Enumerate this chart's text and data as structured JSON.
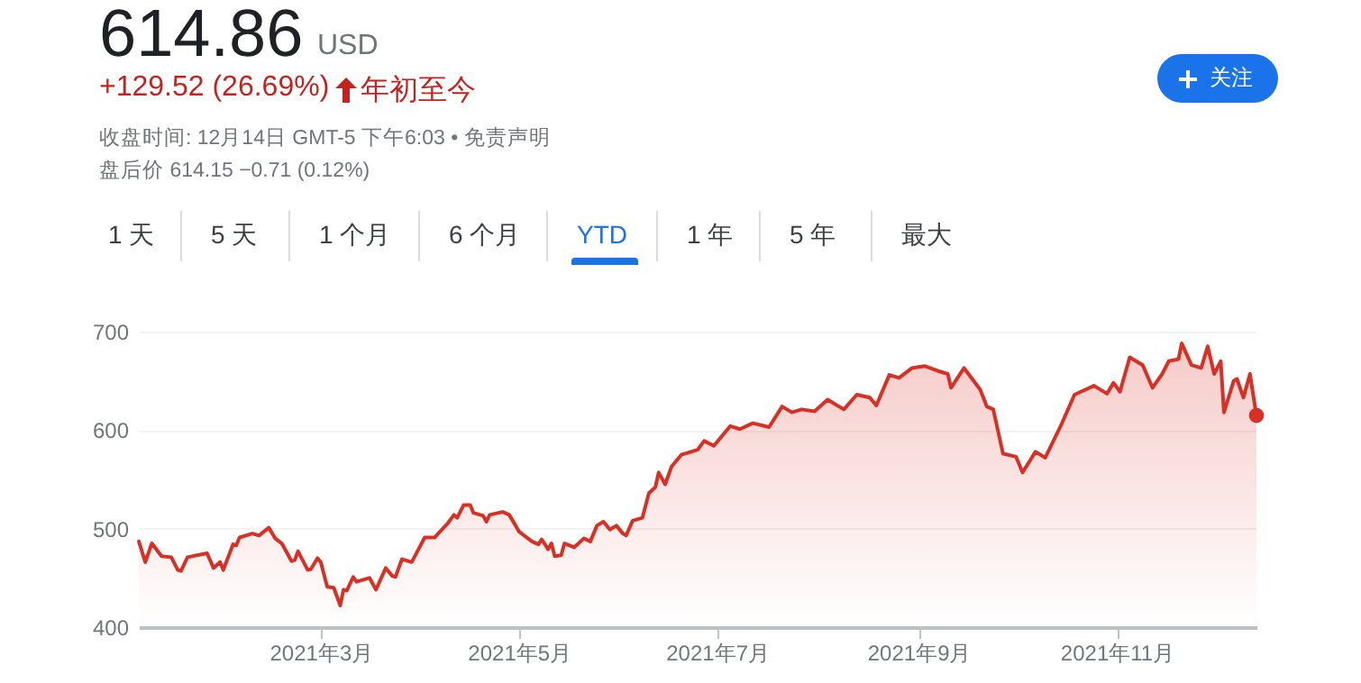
{
  "chart_data": {
    "type": "area",
    "title": "614.86",
    "annotations": [
      "USD",
      "+129.52 (26.69%)",
      "年初至今",
      "收盘时间: 12月14日 GMT-5 下午6:03 • 免责声明",
      "盘后价 614.15 −0.71 (0.12%)",
      "1 天",
      "5 天",
      "1 个月",
      "6 个月",
      "YTD",
      "1 年",
      "5 年",
      "最大",
      "关注"
    ],
    "xlim": [
      "2021-01-04",
      "2021-12-14"
    ],
    "xticks": [
      {
        "value": "2021-03-01",
        "label": "2021年3月"
      },
      {
        "value": "2021-05-01",
        "label": "2021年5月"
      },
      {
        "value": "2021-07-01",
        "label": "2021年7月"
      },
      {
        "value": "2021-09-01",
        "label": "2021年9月"
      },
      {
        "value": "2021-11-01",
        "label": "2021年11月"
      }
    ],
    "ylim": [
      400,
      700
    ],
    "yticks": [
      400,
      500,
      600,
      700
    ],
    "grid": "y",
    "series": [
      {
        "color": "#d93025",
        "x": [
          "2021-01-04",
          "2021-01-06",
          "2021-01-08",
          "2021-01-11",
          "2021-01-14",
          "2021-01-16",
          "2021-01-17",
          "2021-01-19",
          "2021-01-25",
          "2021-01-27",
          "2021-01-29",
          "2021-01-30",
          "2021-02-02",
          "2021-02-03",
          "2021-02-04",
          "2021-02-08",
          "2021-02-10",
          "2021-02-13",
          "2021-02-15",
          "2021-02-17",
          "2021-02-20",
          "2021-02-21",
          "2021-02-22",
          "2021-02-25",
          "2021-02-26",
          "2021-02-28",
          "2021-03-01",
          "2021-03-03",
          "2021-03-05",
          "2021-03-07",
          "2021-03-08",
          "2021-03-09",
          "2021-03-11",
          "2021-03-12",
          "2021-03-16",
          "2021-03-18",
          "2021-03-21",
          "2021-03-23",
          "2021-03-24",
          "2021-03-26",
          "2021-03-29",
          "2021-04-02",
          "2021-04-05",
          "2021-04-09",
          "2021-04-11",
          "2021-04-12",
          "2021-04-14",
          "2021-04-16",
          "2021-04-17",
          "2021-04-20",
          "2021-04-21",
          "2021-04-22",
          "2021-04-26",
          "2021-04-28",
          "2021-04-30",
          "2021-05-01",
          "2021-05-05",
          "2021-05-07",
          "2021-05-08",
          "2021-05-10",
          "2021-05-11",
          "2021-05-12",
          "2021-05-14",
          "2021-05-15",
          "2021-05-18",
          "2021-05-21",
          "2021-05-23",
          "2021-05-25",
          "2021-05-27",
          "2021-05-29",
          "2021-05-31",
          "2021-06-02",
          "2021-06-03",
          "2021-06-05",
          "2021-06-08",
          "2021-06-10",
          "2021-06-12",
          "2021-06-13",
          "2021-06-15",
          "2021-06-17",
          "2021-06-20",
          "2021-06-25",
          "2021-06-27",
          "2021-06-30",
          "2021-07-05",
          "2021-07-08",
          "2021-07-12",
          "2021-07-17",
          "2021-07-21",
          "2021-07-24",
          "2021-07-27",
          "2021-07-31",
          "2021-08-04",
          "2021-08-09",
          "2021-08-13",
          "2021-08-17",
          "2021-08-19",
          "2021-08-23",
          "2021-08-26",
          "2021-08-30",
          "2021-09-03",
          "2021-09-07",
          "2021-09-10",
          "2021-09-11",
          "2021-09-15",
          "2021-09-20",
          "2021-09-22",
          "2021-09-24",
          "2021-09-27",
          "2021-10-01",
          "2021-10-03",
          "2021-10-07",
          "2021-10-10",
          "2021-10-15",
          "2021-10-19",
          "2021-10-25",
          "2021-10-29",
          "2021-10-31",
          "2021-11-02",
          "2021-11-05",
          "2021-11-09",
          "2021-11-12",
          "2021-11-15",
          "2021-11-17",
          "2021-11-20",
          "2021-11-21",
          "2021-11-24",
          "2021-11-27",
          "2021-11-29",
          "2021-12-01",
          "2021-12-03",
          "2021-12-04",
          "2021-12-07",
          "2021-12-08",
          "2021-12-10",
          "2021-12-12",
          "2021-12-14"
        ],
        "values": [
          487,
          466,
          485,
          472,
          471,
          458,
          457,
          471,
          475,
          460,
          466,
          458,
          484,
          483,
          491,
          495,
          493,
          501,
          490,
          485,
          467,
          468,
          477,
          458,
          459,
          470,
          466,
          441,
          440,
          422,
          438,
          437,
          451,
          446,
          450,
          438,
          460,
          452,
          451,
          469,
          466,
          491,
          491,
          505,
          514,
          511,
          524,
          524,
          516,
          513,
          507,
          514,
          517,
          514,
          503,
          497,
          487,
          484,
          489,
          479,
          485,
          472,
          473,
          485,
          481,
          490,
          487,
          503,
          507,
          499,
          503,
          495,
          493,
          508,
          511,
          536,
          542,
          557,
          545,
          563,
          575,
          580,
          589,
          584,
          604,
          601,
          607,
          603,
          624,
          618,
          621,
          619,
          631,
          621,
          636,
          633,
          625,
          656,
          653,
          663,
          665,
          660,
          657,
          643,
          663,
          641,
          624,
          621,
          576,
          573,
          557,
          578,
          572,
          606,
          636,
          645,
          637,
          648,
          639,
          674,
          666,
          643,
          657,
          670,
          672,
          688,
          666,
          663,
          685,
          657,
          670,
          618,
          650,
          652,
          633,
          657,
          614.86
        ]
      },
      {
        "type": "scatter",
        "color": "#d93025",
        "x": [
          "2021-12-14"
        ],
        "values": [
          614.86
        ]
      }
    ]
  }
}
